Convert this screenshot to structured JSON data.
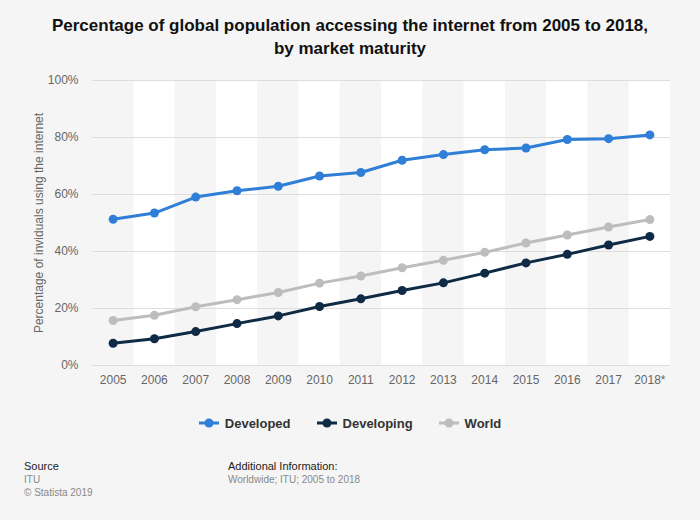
{
  "chart_data": {
    "type": "line",
    "title": "Percentage of global population accessing the internet from 2005 to 2018, by market maturity",
    "y_label": "Percentage of inviduals using the internet",
    "categories": [
      "2005",
      "2006",
      "2007",
      "2008",
      "2009",
      "2010",
      "2011",
      "2012",
      "2013",
      "2014",
      "2015",
      "2016",
      "2017",
      "2018*"
    ],
    "series": [
      {
        "name": "Developed",
        "color": "#2f7ed8",
        "values": [
          51.3,
          53.5,
          59.1,
          61.3,
          62.9,
          66.5,
          67.7,
          72.0,
          74.0,
          75.7,
          76.3,
          79.3,
          79.6,
          80.9
        ]
      },
      {
        "name": "Developing",
        "color": "#0f2a45",
        "values": [
          7.8,
          9.4,
          11.9,
          14.7,
          17.4,
          20.7,
          23.4,
          26.3,
          29.0,
          32.4,
          36.0,
          39.0,
          42.3,
          45.3
        ]
      },
      {
        "name": "World",
        "color": "#bdbdbd",
        "values": [
          15.8,
          17.6,
          20.6,
          23.1,
          25.6,
          28.9,
          31.4,
          34.3,
          36.9,
          39.7,
          43.0,
          45.8,
          48.6,
          51.2
        ]
      }
    ],
    "ylim": [
      0,
      100
    ],
    "yticks": [
      {
        "value": 0,
        "label": "0%"
      },
      {
        "value": 20,
        "label": "20%"
      },
      {
        "value": 40,
        "label": "40%"
      },
      {
        "value": 60,
        "label": "60%"
      },
      {
        "value": 80,
        "label": "80%"
      },
      {
        "value": 100,
        "label": "100%"
      }
    ],
    "grid": true,
    "legend": "bottom",
    "marker": "circle",
    "line_style": "solid",
    "source": {
      "label": "Source",
      "lines": [
        "ITU",
        "© Statista 2019"
      ]
    },
    "additional_info": {
      "label": "Additional Information:",
      "text": "Worldwide; ITU; 2005 to 2018"
    }
  }
}
